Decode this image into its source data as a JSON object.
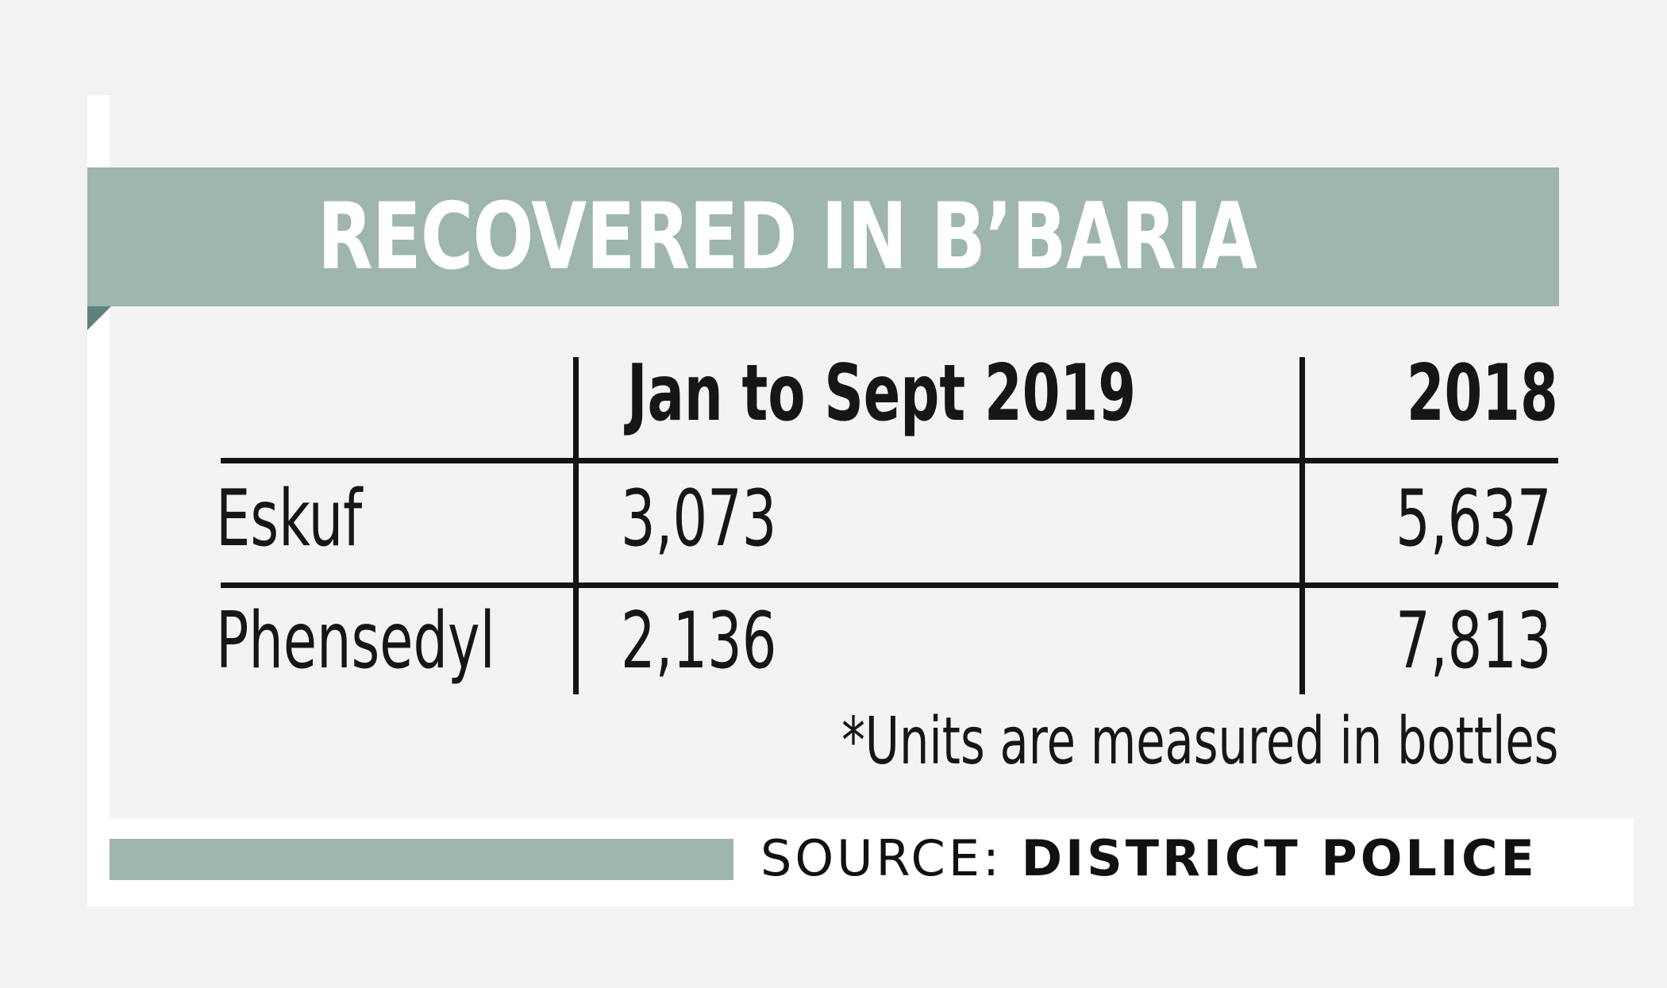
{
  "chart_data": {
    "type": "table",
    "title": "RECOVERED IN B’BARIA",
    "columns": [
      "",
      "Jan to Sept 2019",
      "2018"
    ],
    "rows": [
      {
        "label": "Eskuf",
        "values": [
          "3,073",
          "5,637"
        ]
      },
      {
        "label": "Phensedyl",
        "values": [
          "2,136",
          "7,813"
        ]
      }
    ],
    "note": "*Units are measured in bottles",
    "source_label": "SOURCE:",
    "source_value": "DISTRICT POLICE"
  },
  "colors": {
    "accent": "#9eb6ae",
    "accent_dark": "#5c847c",
    "text": "#161616",
    "background": "#f3f3f3"
  }
}
